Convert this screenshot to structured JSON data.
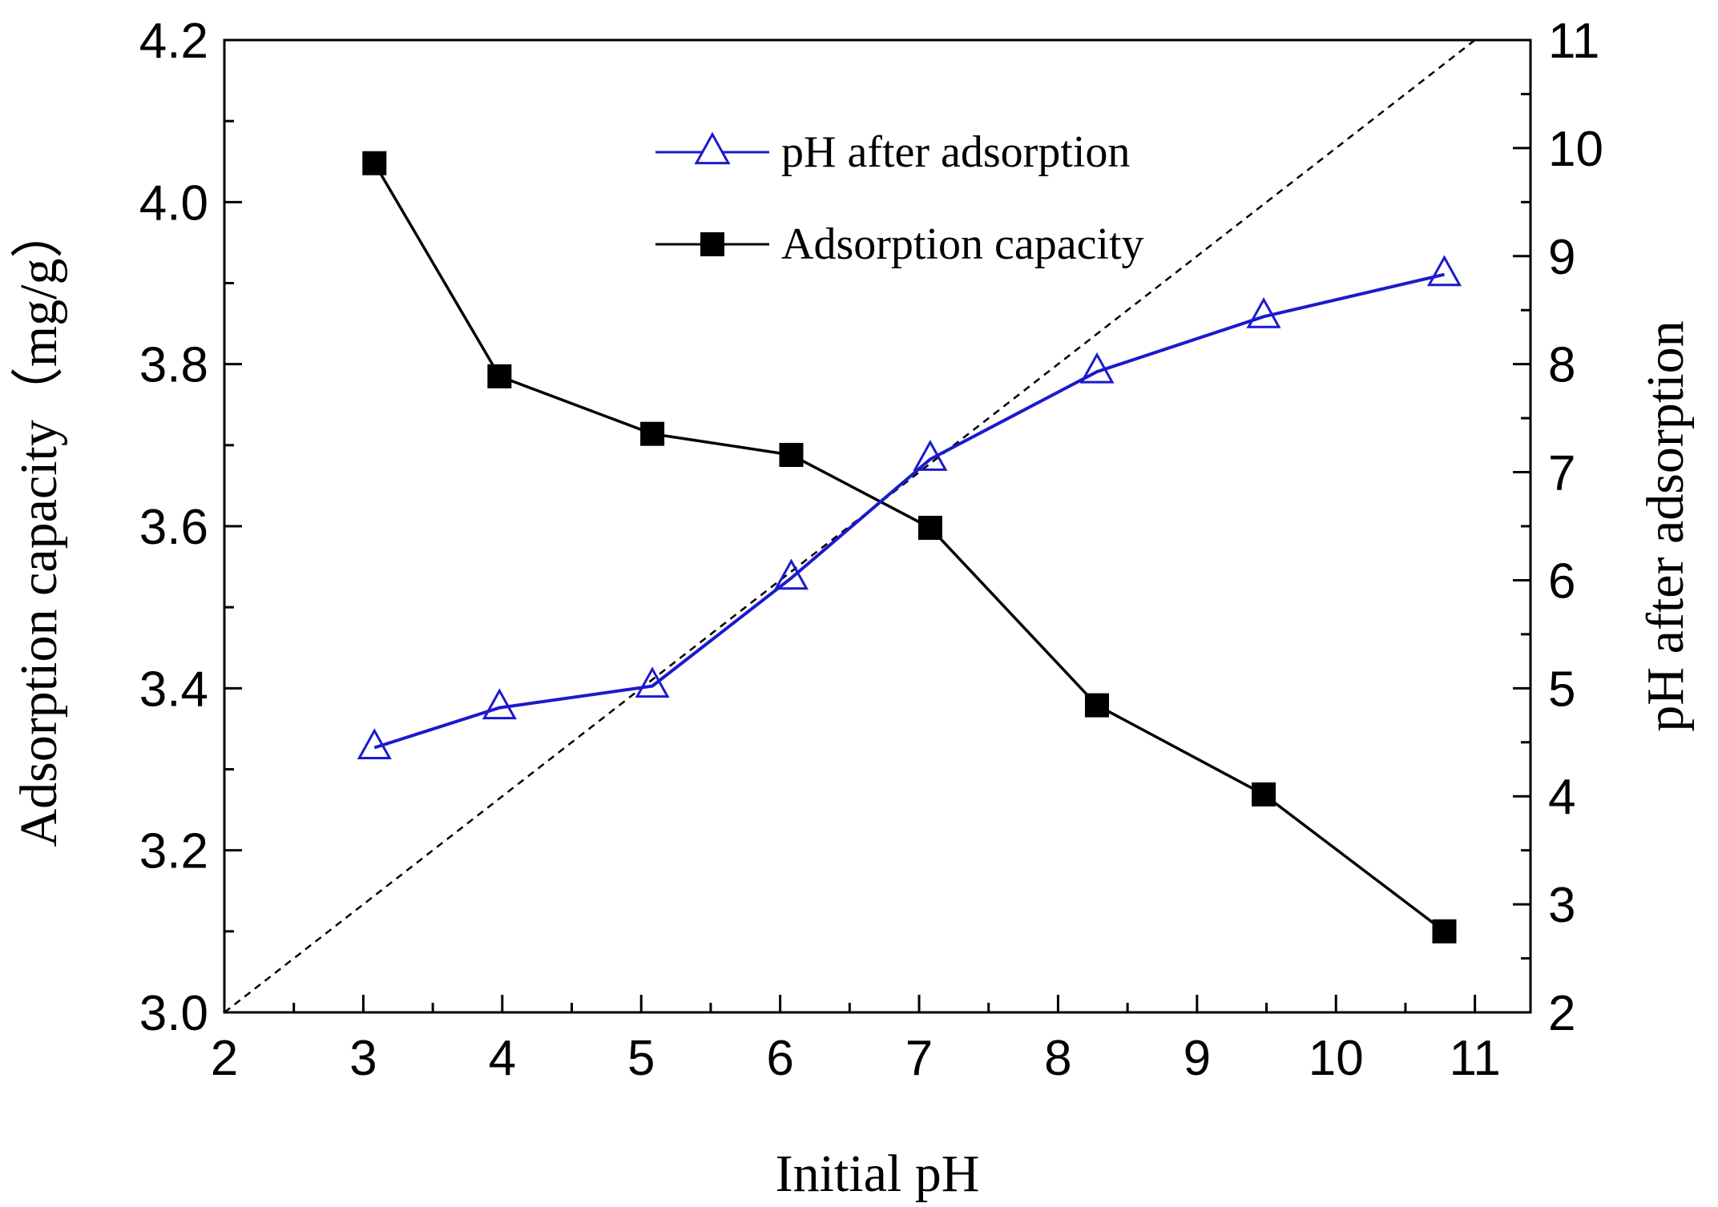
{
  "chart_data": {
    "type": "line",
    "title": "",
    "xlabel": "Initial pH",
    "ylabel_left": "Adsorption capacity（mg/g）",
    "ylabel_right": "pH after adsorption",
    "xlim": [
      2,
      11.4
    ],
    "ylim_left": [
      3.0,
      4.2
    ],
    "ylim_right": [
      2,
      11
    ],
    "x_ticks": [
      2,
      3,
      4,
      5,
      6,
      7,
      8,
      9,
      10,
      11
    ],
    "y_left_ticks": [
      3.0,
      3.2,
      3.4,
      3.6,
      3.8,
      4.0,
      4.2
    ],
    "y_left_tick_labels": [
      "3.0",
      "3.2",
      "3.4",
      "3.6",
      "3.8",
      "4.0",
      "4.2"
    ],
    "y_right_ticks": [
      2,
      3,
      4,
      5,
      6,
      7,
      8,
      9,
      10,
      11
    ],
    "legend_position": "top-center",
    "series": [
      {
        "name": "pH after adsorption",
        "axis": "right",
        "color": "#1a1acc",
        "marker": "open-triangle",
        "x": [
          3.08,
          3.98,
          5.08,
          6.08,
          7.08,
          8.28,
          9.48,
          10.78
        ],
        "y": [
          4.45,
          4.82,
          5.02,
          6.02,
          7.12,
          7.93,
          8.44,
          8.83
        ]
      },
      {
        "name": "Adsorption capacity",
        "axis": "left",
        "color": "#000000",
        "marker": "filled-square",
        "x": [
          3.08,
          3.98,
          5.08,
          6.08,
          7.08,
          8.28,
          9.48,
          10.78
        ],
        "y": [
          4.048,
          3.785,
          3.714,
          3.688,
          3.598,
          3.379,
          3.269,
          3.1
        ]
      }
    ],
    "reference_line": {
      "name": "y = x",
      "style": "dashed",
      "color": "#000000",
      "axis": "right",
      "x": [
        2,
        11
      ],
      "y": [
        2,
        11
      ]
    }
  }
}
